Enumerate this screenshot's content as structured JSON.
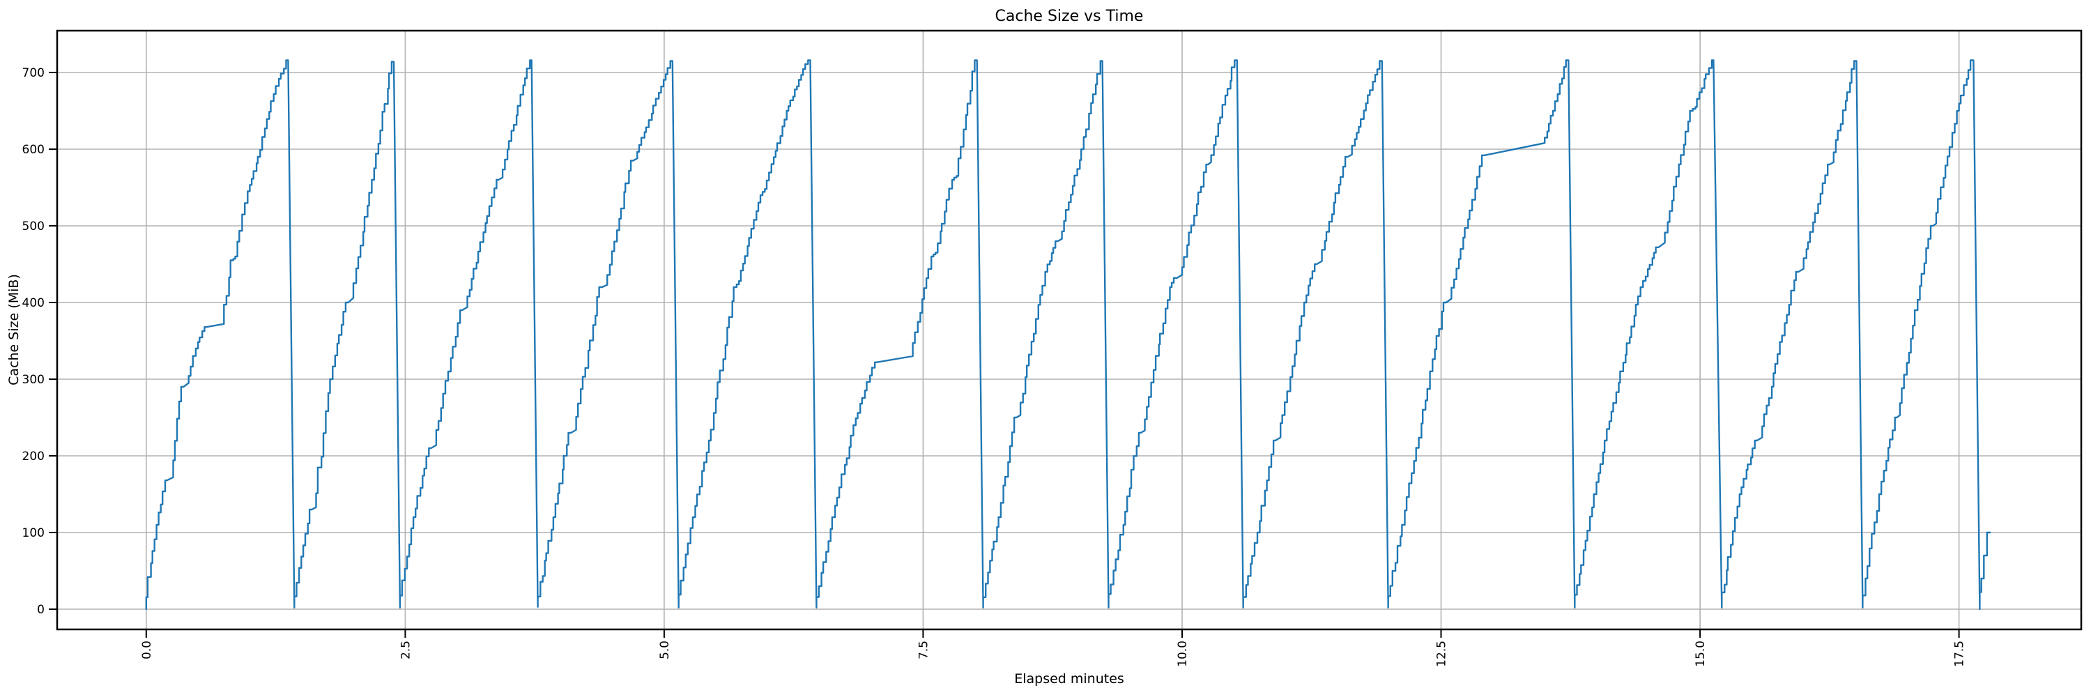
{
  "chart_data": {
    "type": "line",
    "title": "Cache Size vs Time",
    "xlabel": "Elapsed minutes",
    "ylabel": "Cache Size (MiB)",
    "xlim": [
      -0.86,
      18.68
    ],
    "ylim": [
      -26.4,
      754.5
    ],
    "x_ticks": [
      0.0,
      2.5,
      5.0,
      7.5,
      10.0,
      12.5,
      15.0,
      17.5
    ],
    "x_tick_labels": [
      "0.0",
      "2.5",
      "5.0",
      "7.5",
      "10.0",
      "12.5",
      "15.0",
      "17.5"
    ],
    "y_ticks": [
      0,
      100,
      200,
      300,
      400,
      500,
      600,
      700
    ],
    "y_tick_labels": [
      "0",
      "100",
      "200",
      "300",
      "400",
      "500",
      "600",
      "700"
    ],
    "x_tick_rotation": 90,
    "grid": true,
    "legend_position": "none",
    "colors": {
      "line": "#1f77b4",
      "grid": "#b2b2b2",
      "spine": "#000000",
      "background": "#ffffff",
      "text": "#000000"
    },
    "peak_value_mib": 716,
    "valley_value_mib": 0,
    "peaks_at_minutes": [
      1.37,
      2.39,
      3.72,
      5.08,
      6.41,
      8.02,
      9.23,
      10.53,
      11.93,
      13.73,
      15.13,
      16.51,
      17.64
    ],
    "plateaus": [
      {
        "start_min": 0.58,
        "end_min": 0.75,
        "value_mib": 370
      },
      {
        "start_min": 7.05,
        "end_min": 7.4,
        "value_mib": 325
      },
      {
        "start_min": 12.92,
        "end_min": 13.5,
        "value_mib": 600
      }
    ],
    "series": [
      {
        "name": "cache_size",
        "points": [
          [
            0.0,
            0
          ],
          [
            0.06,
            60
          ],
          [
            0.12,
            110
          ],
          [
            0.2,
            168
          ],
          [
            0.26,
            172
          ],
          [
            0.36,
            290
          ],
          [
            0.41,
            295
          ],
          [
            0.5,
            340
          ],
          [
            0.58,
            368
          ],
          [
            0.75,
            372
          ],
          [
            0.84,
            455
          ],
          [
            0.88,
            460
          ],
          [
            1.0,
            545
          ],
          [
            1.1,
            590
          ],
          [
            1.25,
            672
          ],
          [
            1.37,
            716
          ],
          [
            1.43,
            2
          ],
          [
            1.6,
            130
          ],
          [
            1.64,
            133
          ],
          [
            1.8,
            300
          ],
          [
            1.95,
            400
          ],
          [
            2.0,
            406
          ],
          [
            2.2,
            560
          ],
          [
            2.39,
            714
          ],
          [
            2.45,
            2
          ],
          [
            2.6,
            120
          ],
          [
            2.75,
            210
          ],
          [
            2.8,
            214
          ],
          [
            3.05,
            390
          ],
          [
            3.1,
            394
          ],
          [
            3.4,
            560
          ],
          [
            3.44,
            563
          ],
          [
            3.72,
            716
          ],
          [
            3.78,
            3
          ],
          [
            3.95,
            120
          ],
          [
            4.1,
            230
          ],
          [
            4.15,
            234
          ],
          [
            4.4,
            420
          ],
          [
            4.45,
            423
          ],
          [
            4.7,
            585
          ],
          [
            4.74,
            588
          ],
          [
            5.08,
            715
          ],
          [
            5.14,
            2
          ],
          [
            5.3,
            120
          ],
          [
            5.45,
            220
          ],
          [
            5.7,
            420
          ],
          [
            5.74,
            428
          ],
          [
            5.95,
            540
          ],
          [
            5.99,
            548
          ],
          [
            6.2,
            650
          ],
          [
            6.41,
            716
          ],
          [
            6.47,
            2
          ],
          [
            6.65,
            120
          ],
          [
            6.85,
            240
          ],
          [
            7.05,
            322
          ],
          [
            7.4,
            330
          ],
          [
            7.6,
            460
          ],
          [
            7.64,
            465
          ],
          [
            7.8,
            560
          ],
          [
            7.84,
            565
          ],
          [
            8.02,
            716
          ],
          [
            8.08,
            2
          ],
          [
            8.25,
            120
          ],
          [
            8.4,
            250
          ],
          [
            8.44,
            253
          ],
          [
            8.7,
            440
          ],
          [
            8.8,
            480
          ],
          [
            8.84,
            483
          ],
          [
            9.05,
            600
          ],
          [
            9.23,
            715
          ],
          [
            9.29,
            2
          ],
          [
            9.45,
            110
          ],
          [
            9.6,
            230
          ],
          [
            9.64,
            233
          ],
          [
            9.9,
            420
          ],
          [
            9.95,
            432
          ],
          [
            10.0,
            436
          ],
          [
            10.25,
            580
          ],
          [
            10.28,
            583
          ],
          [
            10.53,
            716
          ],
          [
            10.59,
            2
          ],
          [
            10.75,
            100
          ],
          [
            10.9,
            220
          ],
          [
            10.95,
            224
          ],
          [
            11.2,
            400
          ],
          [
            11.3,
            450
          ],
          [
            11.35,
            454
          ],
          [
            11.6,
            590
          ],
          [
            11.64,
            593
          ],
          [
            11.93,
            715
          ],
          [
            11.99,
            2
          ],
          [
            12.15,
            110
          ],
          [
            12.35,
            260
          ],
          [
            12.55,
            400
          ],
          [
            12.6,
            405
          ],
          [
            12.8,
            520
          ],
          [
            12.92,
            592
          ],
          [
            13.5,
            608
          ],
          [
            13.6,
            650
          ],
          [
            13.73,
            716
          ],
          [
            13.79,
            2
          ],
          [
            14.0,
            150
          ],
          [
            14.1,
            220
          ],
          [
            14.45,
            420
          ],
          [
            14.6,
            472
          ],
          [
            14.66,
            478
          ],
          [
            14.93,
            650
          ],
          [
            14.97,
            655
          ],
          [
            15.13,
            716
          ],
          [
            15.21,
            2
          ],
          [
            15.4,
            150
          ],
          [
            15.55,
            220
          ],
          [
            15.6,
            224
          ],
          [
            15.95,
            440
          ],
          [
            16.0,
            444
          ],
          [
            16.25,
            580
          ],
          [
            16.29,
            583
          ],
          [
            16.51,
            715
          ],
          [
            16.57,
            2
          ],
          [
            16.75,
            150
          ],
          [
            16.9,
            250
          ],
          [
            16.93,
            253
          ],
          [
            17.1,
            390
          ],
          [
            17.25,
            500
          ],
          [
            17.28,
            503
          ],
          [
            17.5,
            650
          ],
          [
            17.64,
            716
          ],
          [
            17.7,
            0
          ],
          [
            17.74,
            40
          ],
          [
            17.77,
            70
          ],
          [
            17.8,
            100
          ]
        ]
      }
    ],
    "render": {
      "staircase_min_rate": 120,
      "step_minutes": 0.022
    }
  }
}
